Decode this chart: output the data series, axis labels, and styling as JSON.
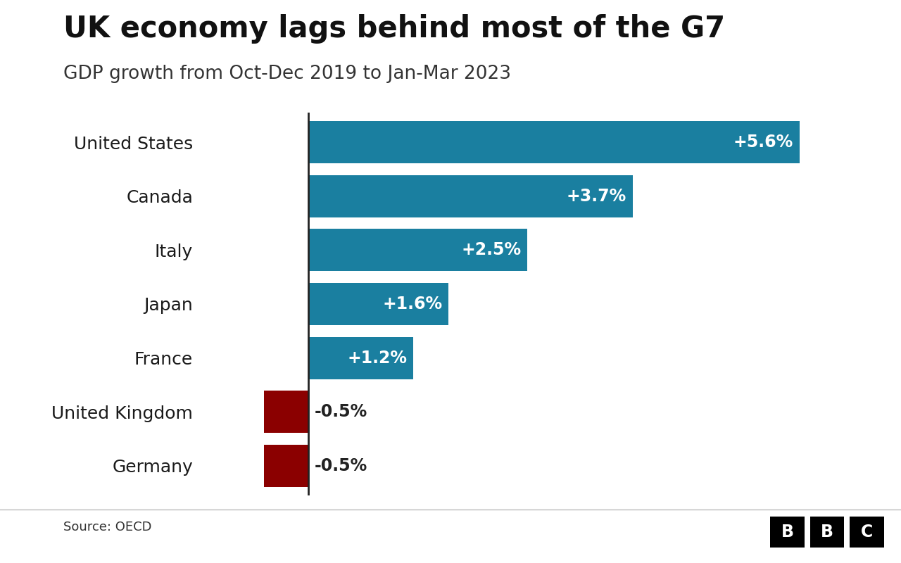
{
  "title": "UK economy lags behind most of the G7",
  "subtitle": "GDP growth from Oct-Dec 2019 to Jan-Mar 2023",
  "source": "Source: OECD",
  "categories": [
    "United States",
    "Canada",
    "Italy",
    "Japan",
    "France",
    "United Kingdom",
    "Germany"
  ],
  "values": [
    5.6,
    3.7,
    2.5,
    1.6,
    1.2,
    -0.5,
    -0.5
  ],
  "labels": [
    "+5.6%",
    "+3.7%",
    "+2.5%",
    "+1.6%",
    "+1.2%",
    "-0.5%",
    "-0.5%"
  ],
  "bar_colors": [
    "#1a7fa0",
    "#1a7fa0",
    "#1a7fa0",
    "#1a7fa0",
    "#1a7fa0",
    "#8b0000",
    "#8b0000"
  ],
  "background_color": "#ffffff",
  "title_fontsize": 30,
  "subtitle_fontsize": 19,
  "label_fontsize": 17,
  "category_fontsize": 18,
  "xlim": [
    -1.2,
    6.5
  ],
  "bar_height": 0.78
}
